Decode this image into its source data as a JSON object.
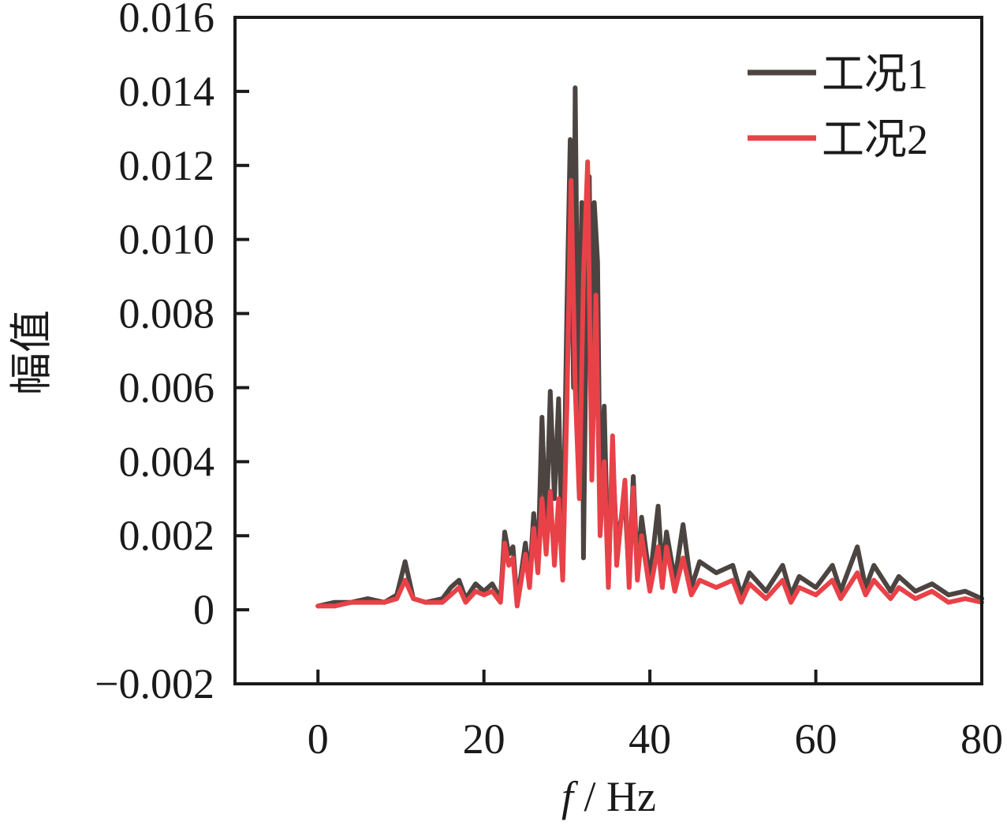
{
  "chart_data": {
    "type": "line",
    "title": "",
    "xlabel_italic": "f",
    "xlabel_rest": " / Hz",
    "ylabel": "幅值",
    "xlim": [
      -10,
      80
    ],
    "ylim": [
      -0.002,
      0.016
    ],
    "xticks": [
      0,
      20,
      40,
      60,
      80
    ],
    "xtick_labels": [
      "0",
      "20",
      "40",
      "60",
      "80"
    ],
    "yticks": [
      -0.002,
      0,
      0.002,
      0.004,
      0.006,
      0.008,
      0.01,
      0.012,
      0.014,
      0.016
    ],
    "ytick_labels": [
      "−0.002",
      "0",
      "0.002",
      "0.004",
      "0.006",
      "0.008",
      "0.010",
      "0.012",
      "0.014",
      "0.016"
    ],
    "grid": false,
    "legend_position": "top-right",
    "series": [
      {
        "name": "工况1",
        "color": "#4b4441",
        "x": [
          0,
          2,
          4,
          6,
          8,
          9.5,
          10.5,
          11.5,
          13,
          15,
          16,
          17,
          17.8,
          19,
          20,
          21,
          22,
          22.5,
          23,
          23.5,
          24,
          25,
          25.5,
          26,
          26.5,
          27,
          27.5,
          28,
          28.5,
          29,
          29.5,
          30,
          30.4,
          30.8,
          31,
          31.4,
          31.8,
          32,
          32.4,
          32.7,
          33,
          33.3,
          33.7,
          34,
          34.5,
          35,
          35.5,
          36,
          37,
          37.5,
          38,
          38.5,
          39,
          40,
          41,
          41.5,
          42,
          43,
          44,
          45,
          46,
          48,
          50,
          51,
          52,
          54,
          56,
          57,
          58,
          60,
          62,
          63,
          65,
          66,
          67,
          69,
          70,
          72,
          74,
          76,
          78,
          80
        ],
        "y": [
          0.0001,
          0.0002,
          0.0002,
          0.0003,
          0.0002,
          0.0004,
          0.0013,
          0.0003,
          0.0002,
          0.0003,
          0.0006,
          0.0008,
          0.0003,
          0.0007,
          0.0005,
          0.0007,
          0.0003,
          0.0021,
          0.0015,
          0.0017,
          0.0002,
          0.0018,
          0.0008,
          0.0026,
          0.0012,
          0.0052,
          0.002,
          0.0059,
          0.003,
          0.0057,
          0.001,
          0.0081,
          0.0127,
          0.006,
          0.0141,
          0.005,
          0.011,
          0.0014,
          0.009,
          0.0117,
          0.004,
          0.011,
          0.0094,
          0.003,
          0.0055,
          0.0008,
          0.0042,
          0.0018,
          0.003,
          0.0008,
          0.0036,
          0.001,
          0.0025,
          0.0008,
          0.0028,
          0.001,
          0.0021,
          0.0008,
          0.0023,
          0.0006,
          0.0013,
          0.001,
          0.0012,
          0.0004,
          0.001,
          0.0005,
          0.0012,
          0.0004,
          0.0009,
          0.0006,
          0.0012,
          0.0005,
          0.0017,
          0.0006,
          0.0012,
          0.0005,
          0.0009,
          0.0005,
          0.0007,
          0.0004,
          0.0005,
          0.0003
        ]
      },
      {
        "name": "工况2",
        "color": "#e84248",
        "x": [
          0,
          2,
          4,
          6,
          8,
          9.5,
          10.5,
          11.5,
          13,
          15,
          16,
          17,
          17.8,
          19,
          20,
          21,
          22,
          22.5,
          23,
          23.5,
          24,
          25,
          25.5,
          26,
          26.5,
          27,
          27.5,
          28,
          28.5,
          29,
          29.5,
          30,
          30.5,
          31,
          31.5,
          32,
          32.5,
          33,
          33.5,
          34,
          34.5,
          35,
          35.5,
          36,
          37,
          37.5,
          38,
          38.5,
          39,
          40,
          41,
          41.5,
          42,
          43,
          44,
          45,
          46,
          48,
          50,
          51,
          52,
          54,
          56,
          57,
          58,
          60,
          62,
          63,
          65,
          66,
          67,
          69,
          70,
          72,
          74,
          76,
          78,
          80
        ],
        "y": [
          0.0001,
          0.0001,
          0.0002,
          0.0002,
          0.0002,
          0.0003,
          0.0008,
          0.0003,
          0.0002,
          0.0002,
          0.0004,
          0.0006,
          0.0002,
          0.0005,
          0.0004,
          0.0005,
          0.0002,
          0.0018,
          0.0012,
          0.0014,
          0.0001,
          0.0015,
          0.0006,
          0.0022,
          0.001,
          0.003,
          0.0015,
          0.0032,
          0.0012,
          0.003,
          0.0008,
          0.0055,
          0.0116,
          0.006,
          0.003,
          0.009,
          0.0121,
          0.0035,
          0.0085,
          0.002,
          0.004,
          0.0006,
          0.0047,
          0.0012,
          0.0035,
          0.0006,
          0.0033,
          0.0008,
          0.002,
          0.0005,
          0.0017,
          0.0006,
          0.0017,
          0.0005,
          0.0014,
          0.0004,
          0.0008,
          0.0006,
          0.0008,
          0.0002,
          0.0007,
          0.0003,
          0.0008,
          0.0002,
          0.0006,
          0.0004,
          0.0008,
          0.0003,
          0.001,
          0.0004,
          0.0008,
          0.0003,
          0.0006,
          0.0003,
          0.0005,
          0.0002,
          0.0003,
          0.0002
        ]
      }
    ]
  }
}
